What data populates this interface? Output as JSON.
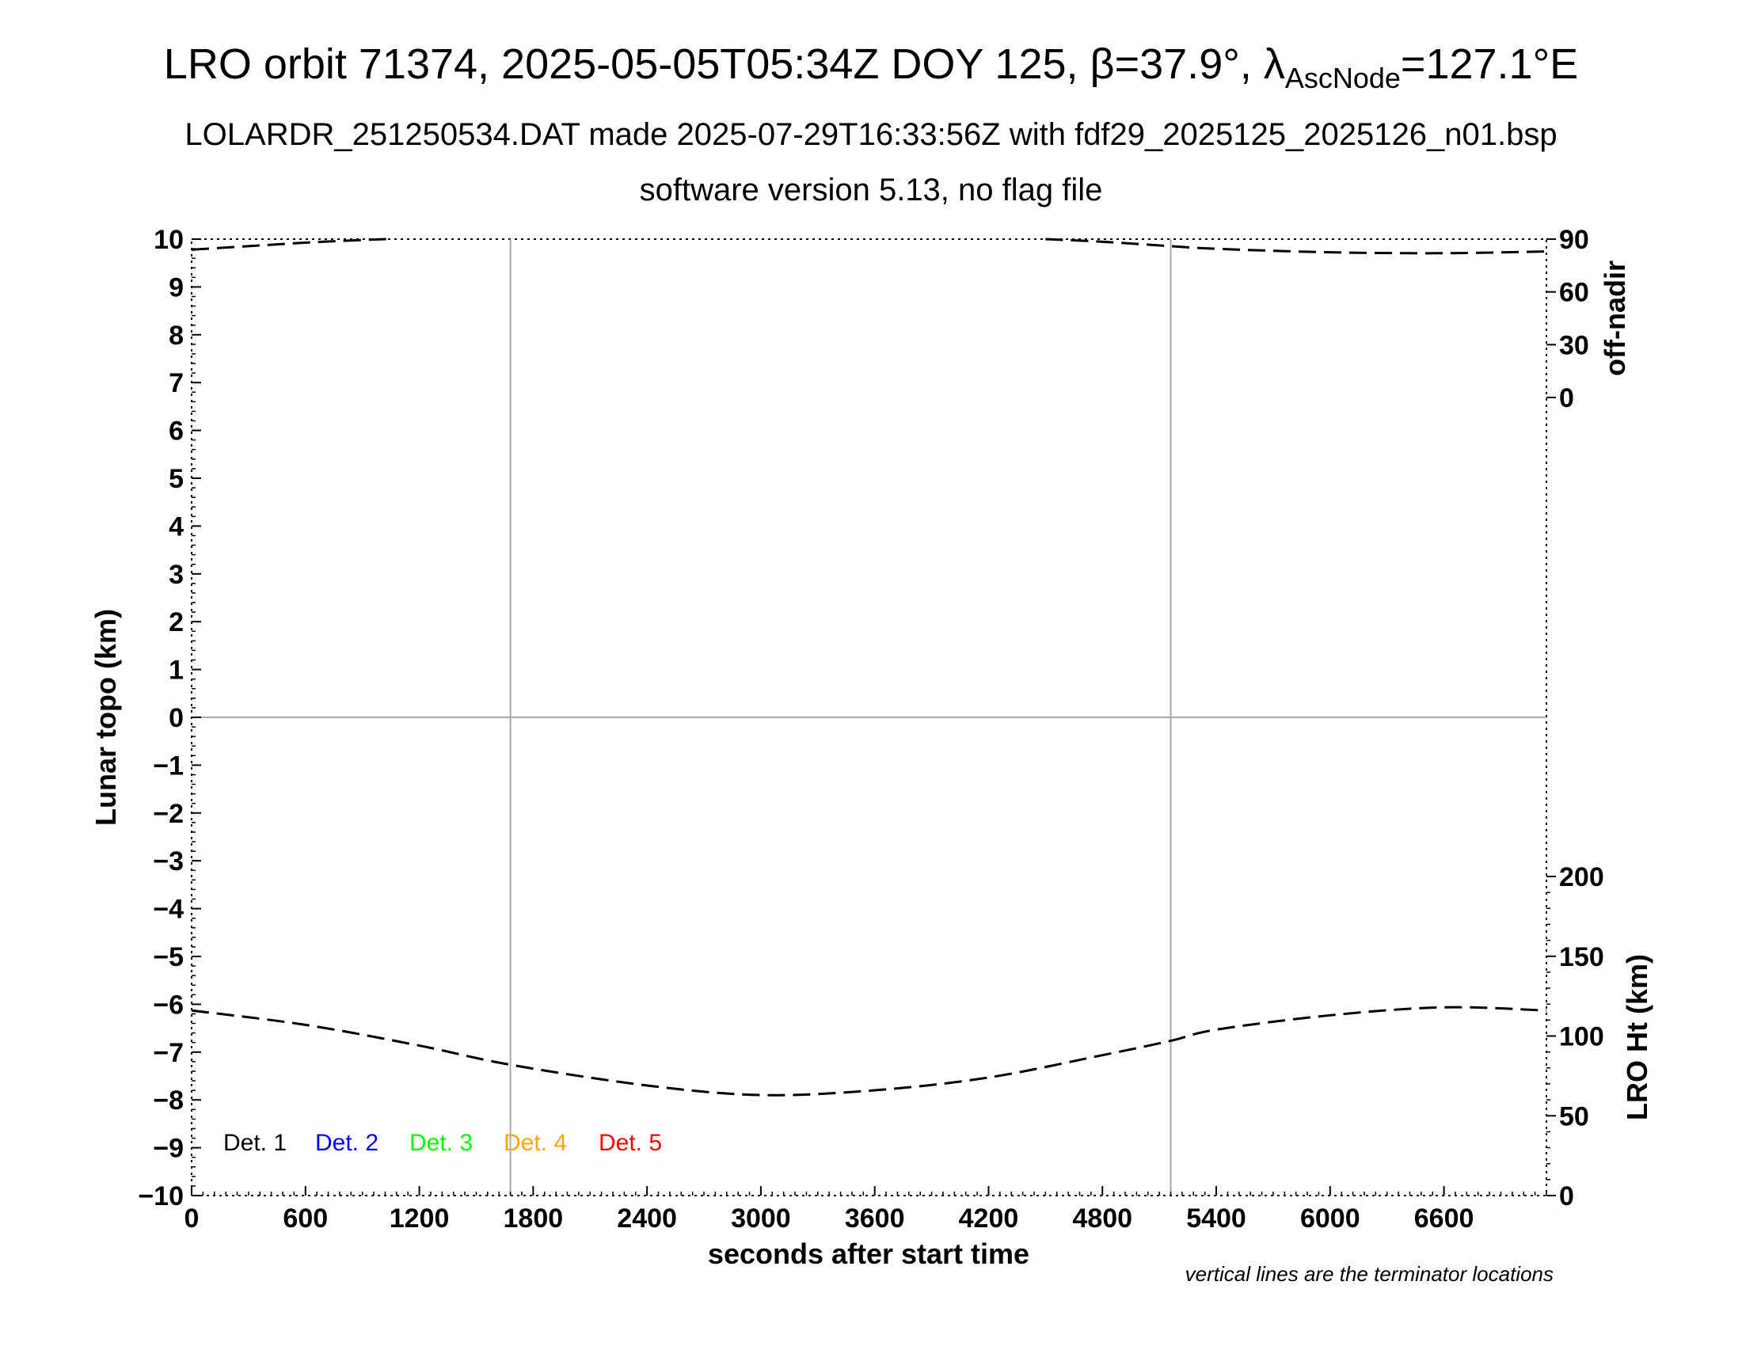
{
  "header": {
    "title_prefix": "LRO orbit 71374, 2025-05-05T05:34Z DOY 125, β=37.9°, λ",
    "title_sub": "AscNode",
    "title_suffix": "=127.1°E",
    "subtitle1": "LOLARDR_251250534.DAT made 2025-07-29T16:33:56Z with fdf29_2025125_2025126_n01.bsp",
    "subtitle2": "software version 5.13, no flag file"
  },
  "chart_data": {
    "type": "line",
    "xlabel": "seconds after start time",
    "ylabel": "Lunar topo (km)",
    "right_top_label": "off-nadir",
    "right_bottom_label": "LRO Ht (km)",
    "xlim": [
      0,
      7140
    ],
    "ylim": [
      -10,
      10
    ],
    "x_ticks": [
      0,
      600,
      1200,
      1800,
      2400,
      3000,
      3600,
      4200,
      4800,
      5400,
      6000,
      6600
    ],
    "y_ticks": [
      10,
      9,
      8,
      7,
      6,
      5,
      4,
      3,
      2,
      1,
      0,
      -1,
      -2,
      -3,
      -4,
      -5,
      -6,
      -7,
      -8,
      -9,
      -10
    ],
    "off_nadir_ticks": [
      90,
      60,
      30,
      0
    ],
    "off_nadir_range": [
      0,
      90
    ],
    "height_ticks": [
      200,
      150,
      100,
      50,
      0
    ],
    "height_range": [
      0,
      200
    ],
    "terminators_x": [
      1680,
      5160
    ],
    "zero_line_y": 0,
    "legend": [
      {
        "label": "Det. 1",
        "color": "#000000"
      },
      {
        "label": "Det. 2",
        "color": "#0000ff"
      },
      {
        "label": "Det. 3",
        "color": "#00ff00"
      },
      {
        "label": "Det. 4",
        "color": "#ffa500"
      },
      {
        "label": "Det. 5",
        "color": "#ff0000"
      }
    ],
    "series": [
      {
        "axis": "LRO Ht (km)",
        "style": "dashed",
        "x": [
          0,
          600,
          1200,
          1680,
          2400,
          3000,
          3600,
          4200,
          4800,
          5160,
          5400,
          6000,
          6600,
          7140
        ],
        "y": [
          116,
          107,
          94,
          82,
          69,
          63,
          66,
          74,
          88,
          97,
          104,
          113,
          118,
          116
        ]
      },
      {
        "axis": "off-nadir",
        "style": "dashed",
        "x": [
          0,
          300,
          600,
          900,
          1030
        ],
        "y": [
          84,
          86,
          88,
          89.5,
          90
        ]
      },
      {
        "axis": "off-nadir",
        "style": "dashed",
        "x": [
          4500,
          4800,
          5160,
          5400,
          6000,
          6600,
          7140
        ],
        "y": [
          90,
          88.5,
          86,
          84.5,
          82.5,
          82,
          83
        ]
      }
    ],
    "grid": false,
    "legend_position": "bottom-left",
    "footnote": "vertical lines are the terminator locations"
  }
}
